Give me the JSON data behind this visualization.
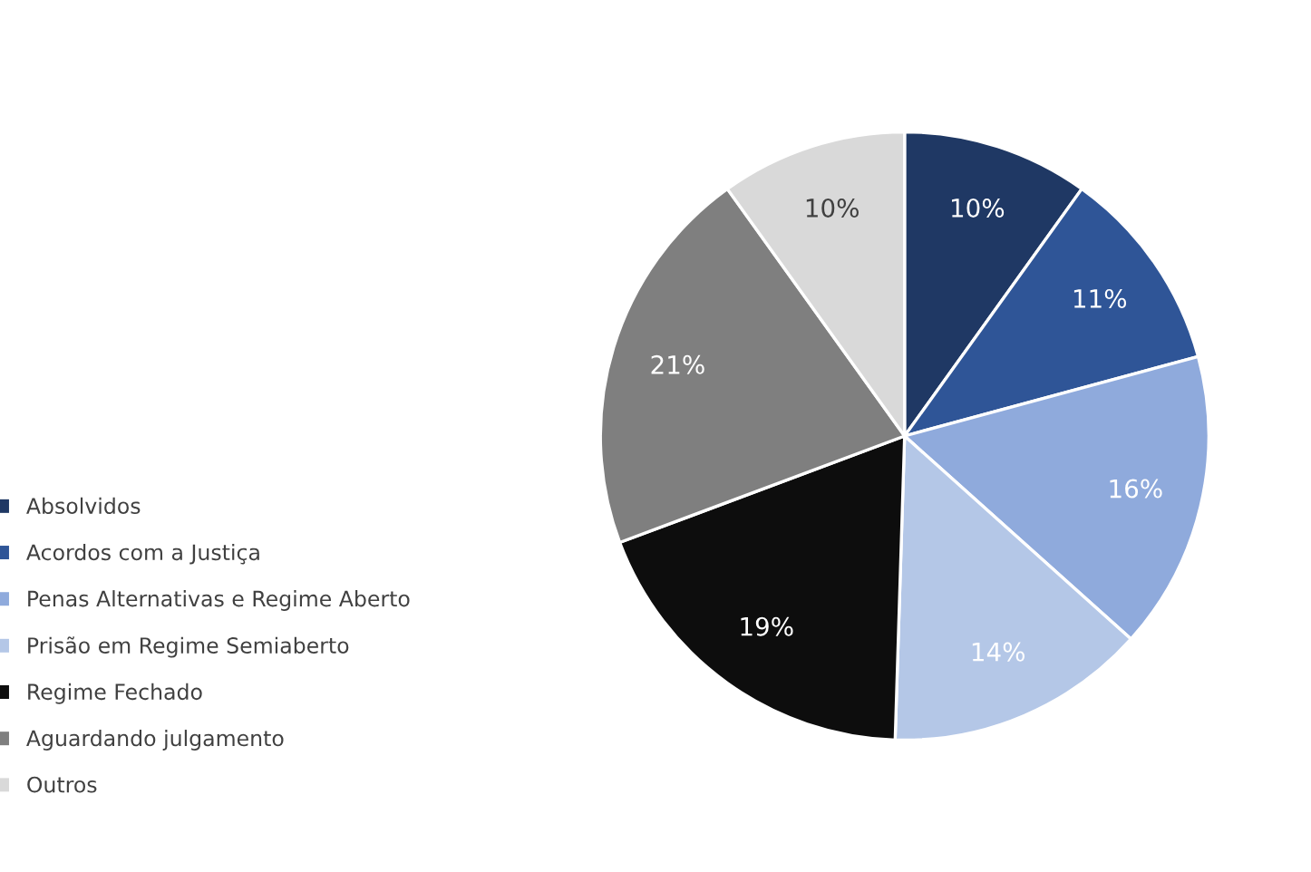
{
  "chart_data": {
    "type": "pie",
    "categories": [
      "Absolvidos",
      "Acordos com a Justiça",
      "Penas Alternativas e Regime Aberto",
      "Prisão em Regime Semiaberto",
      "Regime Fechado",
      "Aguardando julgamento",
      "Outros"
    ],
    "values": [
      10,
      11,
      16,
      14,
      19,
      21,
      10
    ],
    "colors": [
      "#1f3864",
      "#2f5597",
      "#8faadc",
      "#b4c7e7",
      "#0d0d0d",
      "#7f7f7f",
      "#d9d9d9"
    ],
    "value_labels": [
      "10%",
      "11%",
      "16%",
      "14%",
      "19%",
      "21%",
      "10%"
    ],
    "legend": "left"
  }
}
